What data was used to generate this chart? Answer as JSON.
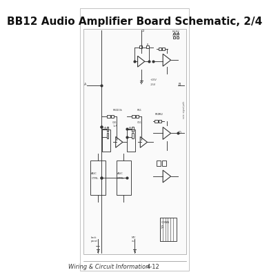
{
  "title": "BB12 Audio Amplifier Board Schematic, 2/4",
  "footer_left": "Wiring & Circuit Information",
  "footer_right": "4-12",
  "bg_color": "#ffffff",
  "border_color": "#aaaaaa",
  "title_fontsize": 11,
  "footer_fontsize": 6,
  "page_bg": "#f5f5f5"
}
